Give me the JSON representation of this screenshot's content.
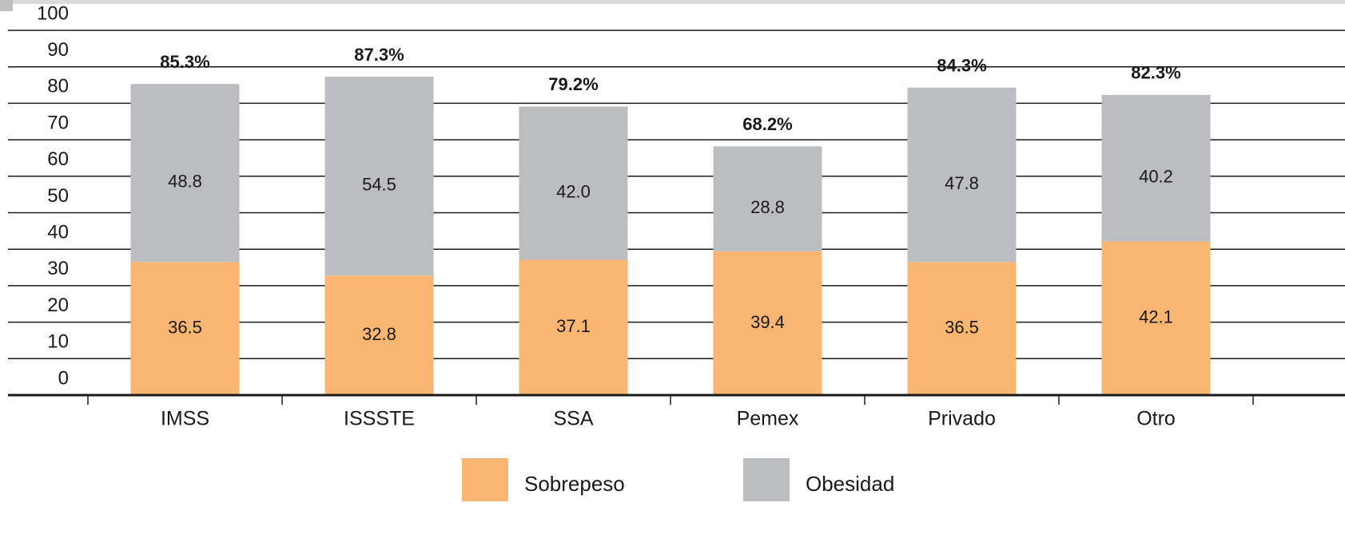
{
  "chart_data": {
    "type": "stacked_bar",
    "categories": [
      "IMSS",
      "ISSSTE",
      "SSA",
      "Pemex",
      "Privado",
      "Otro"
    ],
    "series": [
      {
        "name": "Sobrepeso",
        "color": "#f9b673",
        "values": [
          36.5,
          32.8,
          37.1,
          39.4,
          36.5,
          42.1
        ]
      },
      {
        "name": "Obesidad",
        "color": "#bcbdc0",
        "values": [
          48.8,
          54.5,
          42.0,
          28.8,
          47.8,
          40.2
        ],
        "value_labels": [
          "48.8",
          "54.5",
          "42.0",
          "28.8",
          "47.8",
          "40.2"
        ]
      }
    ],
    "totals": [
      85.3,
      87.3,
      79.2,
      68.2,
      84.3,
      82.3
    ],
    "total_labels": [
      "85.3%",
      "87.3%",
      "79.2%",
      "68.2%",
      "84.3%",
      "82.3%"
    ],
    "ylim": [
      0,
      100
    ],
    "yticks": [
      0,
      10,
      20,
      30,
      40,
      50,
      60,
      70,
      80,
      90,
      100
    ],
    "grid": true,
    "legend": "bottom"
  }
}
